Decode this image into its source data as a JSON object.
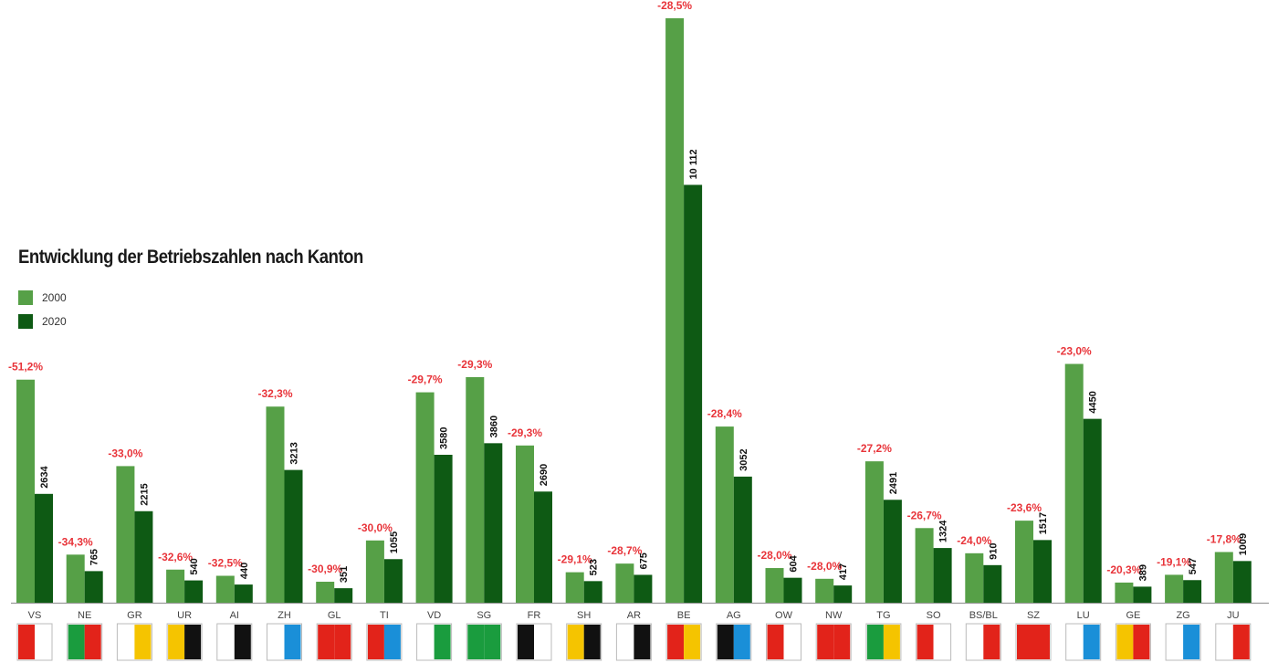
{
  "chart_data": {
    "type": "bar",
    "title": "Entwicklung der Betriebszahlen nach Kanton",
    "xlabel": "",
    "ylabel": "",
    "ylim": [
      0,
      14200
    ],
    "grid": false,
    "legend_placement": "left",
    "colors": {
      "2000": "#56a047",
      "2020": "#0e5a14",
      "pct": "#e8343a"
    },
    "categories": [
      "VS",
      "NE",
      "GR",
      "UR",
      "AI",
      "ZH",
      "GL",
      "TI",
      "VD",
      "SG",
      "FR",
      "SH",
      "AR",
      "BE",
      "AG",
      "OW",
      "NW",
      "TG",
      "SO",
      "BS/BL",
      "SZ",
      "LU",
      "GE",
      "ZG",
      "JU"
    ],
    "series": [
      {
        "name": "2000",
        "values": [
          5398,
          1164,
          3306,
          801,
          652,
          4746,
          508,
          1507,
          5092,
          5460,
          3805,
          738,
          947,
          14143,
          4263,
          839,
          579,
          3422,
          1806,
          1197,
          1986,
          5779,
          488,
          676,
          1227
        ]
      },
      {
        "name": "2020",
        "values": [
          2634,
          765,
          2215,
          540,
          440,
          3213,
          351,
          1055,
          3580,
          3860,
          2690,
          523,
          675,
          10112,
          3052,
          604,
          417,
          2491,
          1324,
          910,
          1517,
          4450,
          389,
          547,
          1009
        ]
      }
    ],
    "value_labels": [
      "2634",
      "765",
      "2215",
      "540",
      "440",
      "3213",
      "351",
      "1055",
      "3580",
      "3860",
      "2690",
      "523",
      "675",
      "10 112",
      "3052",
      "604",
      "417",
      "2491",
      "1324",
      "910",
      "1517",
      "4450",
      "389",
      "547",
      "1009"
    ],
    "pct_labels": [
      "-51,2%",
      "-34,3%",
      "-33,0%",
      "-32,6%",
      "-32,5%",
      "-32,3%",
      "-30,9%",
      "-30,0%",
      "-29,7%",
      "-29,3%",
      "-29,3%",
      "-29,1%",
      "-28,7%",
      "-28,5%",
      "-28,4%",
      "-28,0%",
      "-28,0%",
      "-27,2%",
      "-26,7%",
      "-24,0%",
      "-23,6%",
      "-23,0%",
      "-20,3%",
      "-19,1%",
      "-17,8%"
    ],
    "flags": [
      [
        "#e2231a",
        "#ffffff"
      ],
      [
        "#1a9c3e",
        "#e2231a"
      ],
      [
        "#ffffff",
        "#f5c400"
      ],
      [
        "#f5c400",
        "#111111"
      ],
      [
        "#ffffff",
        "#111111"
      ],
      [
        "#ffffff",
        "#1a8fd8"
      ],
      [
        "#e2231a",
        "#e2231a"
      ],
      [
        "#e2231a",
        "#1a8fd8"
      ],
      [
        "#ffffff",
        "#1a9c3e"
      ],
      [
        "#1a9c3e",
        "#1a9c3e"
      ],
      [
        "#111111",
        "#ffffff"
      ],
      [
        "#f5c400",
        "#111111"
      ],
      [
        "#ffffff",
        "#111111"
      ],
      [
        "#e2231a",
        "#f5c400"
      ],
      [
        "#111111",
        "#1a8fd8"
      ],
      [
        "#e2231a",
        "#ffffff"
      ],
      [
        "#e2231a",
        "#e2231a"
      ],
      [
        "#1a9c3e",
        "#f5c400"
      ],
      [
        "#e2231a",
        "#ffffff"
      ],
      [
        "#ffffff",
        "#e2231a"
      ],
      [
        "#e2231a",
        "#e2231a"
      ],
      [
        "#ffffff",
        "#1a8fd8"
      ],
      [
        "#f5c400",
        "#e2231a"
      ],
      [
        "#ffffff",
        "#1a8fd8"
      ],
      [
        "#ffffff",
        "#e2231a"
      ]
    ]
  }
}
